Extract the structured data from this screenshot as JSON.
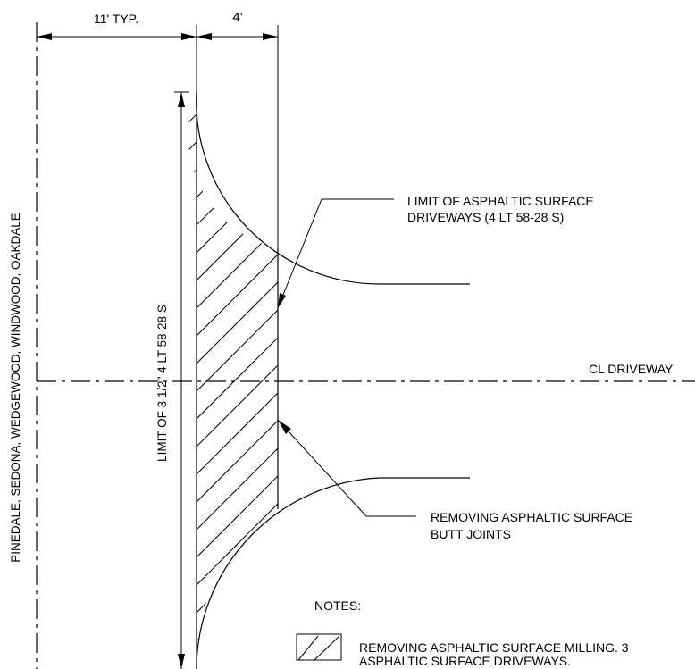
{
  "dimensions": {
    "typ_width": "11' TYP.",
    "taper_width": "4'"
  },
  "labels": {
    "street_names": "PINEDALE, SEDONA, WEDGEWOOD, WINDWOOD, OAKDALE",
    "limit_vertical": "LIMIT OF 3 1/2\" 4 LT 58-28 S",
    "limit_driveways_line1": "LIMIT OF ASPHALTIC SURFACE",
    "limit_driveways_line2": "DRIVEWAYS (4 LT 58-28 S)",
    "cl_driveway": "CL DRIVEWAY",
    "butt_joints_line1": "REMOVING ASPHALTIC SURFACE",
    "butt_joints_line2": "BUTT JOINTS"
  },
  "notes": {
    "heading": "NOTES:",
    "legend_line1": "REMOVING ASPHALTIC SURFACE MILLING. 3",
    "legend_line2": "ASPHALTIC SURFACE DRIVEWAYS."
  }
}
